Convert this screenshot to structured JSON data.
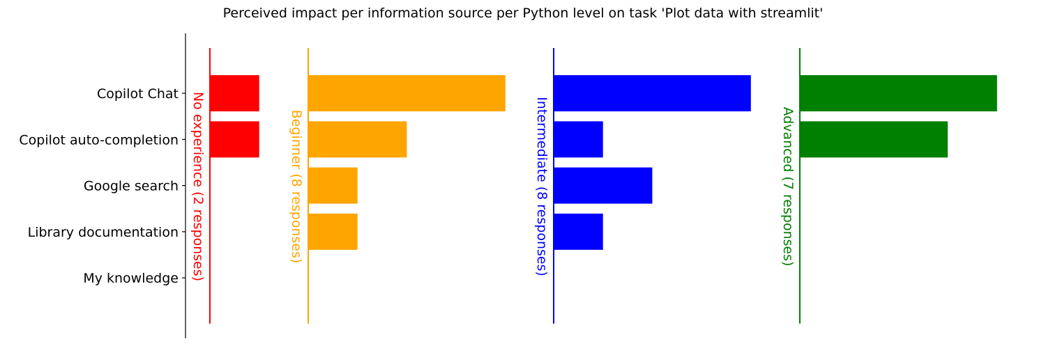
{
  "chart_data": {
    "type": "bar",
    "orientation": "horizontal",
    "title": "Perceived impact per information source per Python level on task 'Plot data with streamlit'",
    "categories": [
      "Copilot Chat",
      "Copilot auto-completion",
      "Google search",
      "Library documentation",
      "My knowledge"
    ],
    "series": [
      {
        "name": "No experience (2 responses)",
        "color": "#ff0000",
        "values": [
          1,
          1,
          0,
          0,
          0
        ]
      },
      {
        "name": "Beginner (8 responses)",
        "color": "#ffa500",
        "values": [
          4,
          2,
          1,
          1,
          0
        ]
      },
      {
        "name": "Intermediate (8 responses)",
        "color": "#0000ff",
        "values": [
          4,
          1,
          2,
          1,
          0
        ]
      },
      {
        "name": "Advanced (7 responses)",
        "color": "#008000",
        "values": [
          4,
          3,
          0,
          0,
          0
        ]
      }
    ],
    "grid": false,
    "legend": "none"
  }
}
